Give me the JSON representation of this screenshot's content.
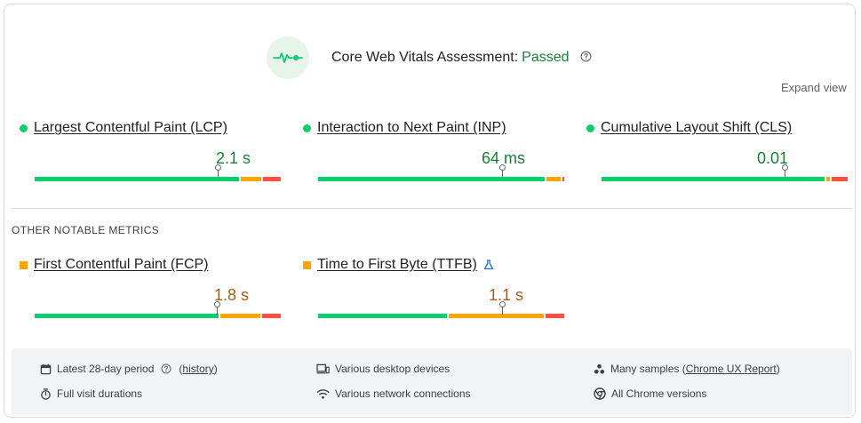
{
  "assessment": {
    "title": "Core Web Vitals Assessment:",
    "status": "Passed",
    "status_color": "#188038",
    "badge_icon": "pulse-icon",
    "help_icon": "help-circle-icon"
  },
  "expand_view_label": "Expand view",
  "core_metrics": [
    {
      "name": "Largest Contentful Paint (LCP)",
      "value": "2.1 s",
      "rating": "good",
      "distribution": {
        "good": 0.83,
        "needs_improvement": 0.09,
        "poor": 0.08
      },
      "p75_position": 0.75
    },
    {
      "name": "Interaction to Next Paint (INP)",
      "value": "64 ms",
      "rating": "good",
      "distribution": {
        "good": 0.92,
        "needs_improvement": 0.06,
        "poor": 0.02
      },
      "p75_position": 0.75
    },
    {
      "name": "Cumulative Layout Shift (CLS)",
      "value": "0.01",
      "rating": "good",
      "distribution": {
        "good": 0.92,
        "needs_improvement": 0.02,
        "poor": 0.07
      },
      "p75_position": 0.75
    }
  ],
  "other_section_title": "OTHER NOTABLE METRICS",
  "other_metrics": [
    {
      "name": "First Contentful Paint (FCP)",
      "value": "1.8 s",
      "rating": "needs-improvement",
      "distribution": {
        "good": 0.75,
        "needs_improvement": 0.17,
        "poor": 0.08
      },
      "p75_position": 0.75
    },
    {
      "name": "Time to First Byte (TTFB)",
      "value": "1.1 s",
      "rating": "needs-improvement",
      "experimental_icon": "flask-icon",
      "distribution": {
        "good": 0.53,
        "needs_improvement": 0.39,
        "poor": 0.08
      },
      "p75_position": 0.75
    }
  ],
  "footer": {
    "period_label": "Latest 28-day period",
    "history_link": "history",
    "devices": "Various desktop devices",
    "samples_prefix": "Many samples (",
    "samples_link": "Chrome UX Report",
    "samples_suffix": ")",
    "durations": "Full visit durations",
    "network": "Various network connections",
    "versions": "All Chrome versions"
  },
  "colors": {
    "good": "#0cce6b",
    "needs_improvement": "#ffa400",
    "poor": "#ff4e42",
    "good_text": "#188038",
    "average_text": "#a65c15"
  }
}
